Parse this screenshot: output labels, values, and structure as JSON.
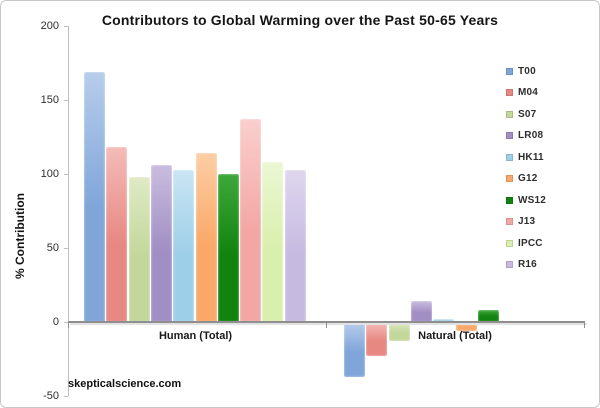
{
  "source": "skepticalscience.com",
  "chart_data": {
    "type": "bar",
    "title": "Contributors to Global Warming over the Past 50-65 Years",
    "ylabel": "% Contribution",
    "ylim": [
      -50,
      200
    ],
    "yticks": [
      200,
      150,
      100,
      50,
      0,
      -50
    ],
    "categories": [
      "Human (Total)",
      "Natural (Total)"
    ],
    "legend_position": "right",
    "grid": false,
    "series": [
      {
        "name": "T00",
        "values": [
          169,
          -37
        ],
        "color": "#7fa5d9",
        "color_light": "#b7cdeb"
      },
      {
        "name": "M04",
        "values": [
          118,
          -23
        ],
        "color": "#e88883",
        "color_light": "#f4bcb8"
      },
      {
        "name": "S07",
        "values": [
          98,
          -13
        ],
        "color": "#c3d79b",
        "color_light": "#dfeac5"
      },
      {
        "name": "LR08",
        "values": [
          106,
          14
        ],
        "color": "#a18ec4",
        "color_light": "#c9bddf"
      },
      {
        "name": "HK11",
        "values": [
          103,
          2
        ],
        "color": "#9ecfe8",
        "color_light": "#c9e5f3"
      },
      {
        "name": "G12",
        "values": [
          114,
          -6
        ],
        "color": "#faa869",
        "color_light": "#fccea4"
      },
      {
        "name": "WS12",
        "values": [
          100,
          8
        ],
        "color": "#12830f",
        "color_light": "#3da83a"
      },
      {
        "name": "J13",
        "values": [
          137,
          null
        ],
        "color": "#f3a7a4",
        "color_light": "#f9cfcd"
      },
      {
        "name": "IPCC",
        "values": [
          108,
          null
        ],
        "color": "#d9efad",
        "color_light": "#ebf7d3"
      },
      {
        "name": "R16",
        "values": [
          103,
          null
        ],
        "color": "#c7bae1",
        "color_light": "#ded6ee"
      }
    ]
  }
}
